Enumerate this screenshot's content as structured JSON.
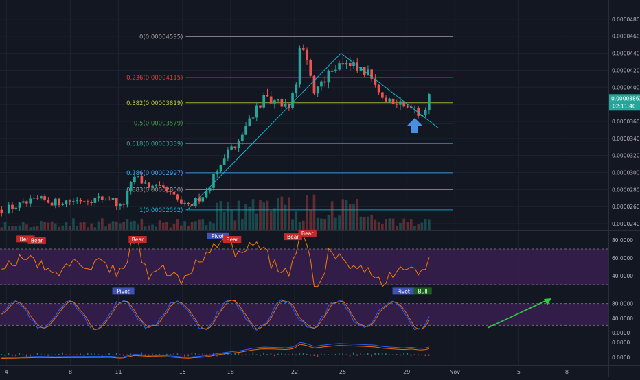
{
  "colors": {
    "background": "#131722",
    "grid": "#1e2230",
    "separator": "#2a2e39",
    "axis_text": "#b2b5be",
    "up": "#26a69a",
    "down": "#ef5350",
    "trendline": "#00bcd4",
    "oscillator_band": "#3a1f52",
    "rsi_line": "#f57c00",
    "stoch_k": "#2962ff",
    "stoch_d": "#ef6c00",
    "macd_line": "#2962ff",
    "signal_line": "#ef6c00",
    "annotation_arrow": "#4a90e2",
    "green_arrow": "#2ecc40",
    "price_tag": "#26a69a",
    "bear_label": "#c62828",
    "bull_label": "#1b5e20",
    "pivot_label": "#3f51b5"
  },
  "chart_data": {
    "type": "candlestick",
    "price_axis_ticks": [
      "0.00004800",
      "0.00004600",
      "0.00004400",
      "0.00004200",
      "0.00004000",
      "0.00003800",
      "0.00003600",
      "0.00003400",
      "0.00003200",
      "0.00003000",
      "0.00002800",
      "0.00002600",
      "0.00002400"
    ],
    "ylim": [
      2.32e-05,
      4.96e-05
    ],
    "x_tick_labels": [
      {
        "label": "4",
        "day": 4
      },
      {
        "label": "8",
        "day": 8
      },
      {
        "label": "11",
        "day": 11
      },
      {
        "label": "15",
        "day": 15
      },
      {
        "label": "18",
        "day": 18
      },
      {
        "label": "22",
        "day": 22
      },
      {
        "label": "25",
        "day": 25
      },
      {
        "label": "29",
        "day": 29
      },
      {
        "label": "Nov",
        "day": 32
      },
      {
        "label": "5",
        "day": 36
      },
      {
        "label": "8",
        "day": 39
      }
    ],
    "xlim": [
      3.6,
      41.6
    ],
    "last_candle_day": 30.4,
    "fib_levels": [
      {
        "label": "0(0.00004595)",
        "value": 4.595e-05,
        "color": "#9e9e9e"
      },
      {
        "label": "0.236(0.00004115)",
        "value": 4.115e-05,
        "color": "#e53935"
      },
      {
        "label": "0.382(0.00003819)",
        "value": 3.819e-05,
        "color": "#c0ca33"
      },
      {
        "label": "0.5(0.00003579)",
        "value": 3.579e-05,
        "color": "#43a047"
      },
      {
        "label": "0.618(0.00003339)",
        "value": 3.339e-05,
        "color": "#26a69a"
      },
      {
        "label": "0.786(0.00002997)",
        "value": 2.997e-05,
        "color": "#42a5f5"
      },
      {
        "label": "0.883(0.00002800)",
        "value": 2.8e-05,
        "color": "#9e9e9e"
      },
      {
        "label": "1(0.00002562)",
        "value": 2.562e-05,
        "color": "#00bcd4"
      }
    ],
    "fib_range_days": [
      15.2,
      30.4
    ],
    "trendlines": [
      {
        "from": [
          15.3,
          2.562e-05
        ],
        "to": [
          24.9,
          4.4e-05
        ]
      },
      {
        "from": [
          24.9,
          4.4e-05
        ],
        "to": [
          31.0,
          3.52e-05
        ]
      }
    ],
    "price_path": [
      [
        3.6,
        2.56e-05
      ],
      [
        5.0,
        2.62e-05
      ],
      [
        6.0,
        2.68e-05
      ],
      [
        7.0,
        2.65e-05
      ],
      [
        8.5,
        2.68e-05
      ],
      [
        10.5,
        2.7e-05
      ],
      [
        11.2,
        2.58e-05
      ],
      [
        12.0,
        2.95e-05
      ],
      [
        13.0,
        2.83e-05
      ],
      [
        14.0,
        2.78e-05
      ],
      [
        15.3,
        2.58e-05
      ],
      [
        16.5,
        2.78e-05
      ],
      [
        17.3,
        3.1e-05
      ],
      [
        18.0,
        3.28e-05
      ],
      [
        18.6,
        3.4e-05
      ],
      [
        19.3,
        3.68e-05
      ],
      [
        20.0,
        3.85e-05
      ],
      [
        21.0,
        3.8e-05
      ],
      [
        21.5,
        3.76e-05
      ],
      [
        22.0,
        3.9e-05
      ],
      [
        22.3,
        4.45e-05
      ],
      [
        22.7,
        4.32e-05
      ],
      [
        23.2,
        3.95e-05
      ],
      [
        24.0,
        4.15e-05
      ],
      [
        24.8,
        4.3e-05
      ],
      [
        25.3,
        4.25e-05
      ],
      [
        26.2,
        4.18e-05
      ],
      [
        27.0,
        4.1e-05
      ],
      [
        27.5,
        3.93e-05
      ],
      [
        28.0,
        3.85e-05
      ],
      [
        28.8,
        3.75e-05
      ],
      [
        29.3,
        3.82e-05
      ],
      [
        29.8,
        3.7e-05
      ],
      [
        30.1,
        3.72e-05
      ],
      [
        30.4,
        3.86e-05
      ]
    ],
    "candle_seed": 12345,
    "candle_count": 120,
    "volume_scale_max": 1.0,
    "current_price": {
      "value": "0.00003863",
      "countdown": "02:11:40"
    },
    "signals_price": [],
    "rsi": {
      "ylim": [
        20,
        90
      ],
      "ticks": [
        "80.0000",
        "60.0000",
        "40.0000"
      ],
      "band": [
        30,
        70
      ],
      "labels": [
        {
          "text": "Bear",
          "day": 5.2,
          "value": 80.5,
          "kind": "bear"
        },
        {
          "text": "Bear",
          "day": 5.9,
          "value": 79.0,
          "kind": "bear"
        },
        {
          "text": "Bear",
          "day": 12.2,
          "value": 80.0,
          "kind": "bear"
        },
        {
          "text": "Pivot",
          "day": 11.3,
          "value": 22.0,
          "kind": "pivot"
        },
        {
          "text": "Pivot",
          "day": 17.2,
          "value": 84.0,
          "kind": "pivot"
        },
        {
          "text": "Bear",
          "day": 18.1,
          "value": 80.0,
          "kind": "bear"
        },
        {
          "text": "Bear",
          "day": 21.9,
          "value": 83.0,
          "kind": "bear"
        },
        {
          "text": "Bear",
          "day": 22.8,
          "value": 87.0,
          "kind": "bear"
        },
        {
          "text": "Pivot",
          "day": 28.8,
          "value": 22.0,
          "kind": "pivot"
        },
        {
          "text": "Bull",
          "day": 30.0,
          "value": 22.0,
          "kind": "bull"
        }
      ]
    },
    "stoch": {
      "ylim": [
        0,
        100
      ],
      "ticks": [
        "80.0000",
        "40.0000",
        "0.0000"
      ],
      "band": [
        20,
        80
      ]
    },
    "macd": {
      "ticks": [
        "0.0000",
        "0.0000"
      ]
    },
    "x_axis_day_offset": 0
  }
}
